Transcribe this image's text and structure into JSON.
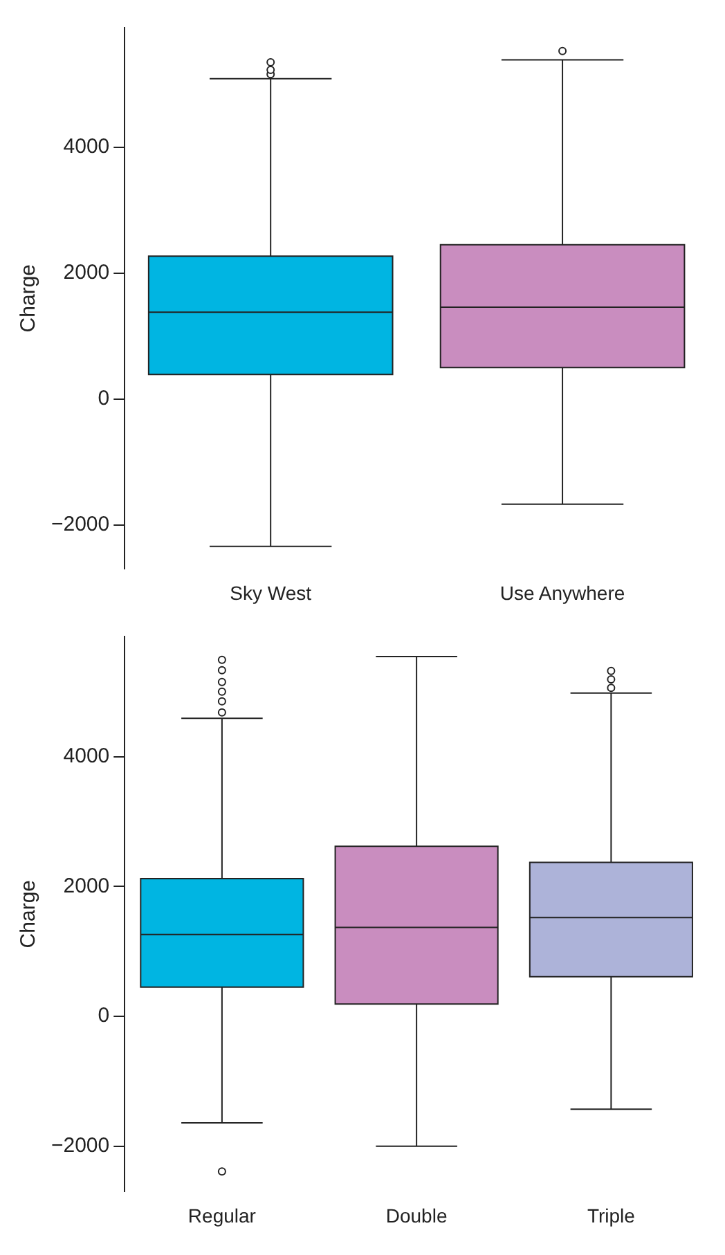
{
  "chart_data": [
    {
      "type": "box",
      "ylabel": "Charge",
      "categories": [
        "Sky West",
        "Use Anywhere"
      ],
      "colors": [
        "#00b5e2",
        "#c98dbf"
      ],
      "ylim": [
        -2700,
        5900
      ],
      "yticks": [
        -2000,
        0,
        2000,
        4000
      ],
      "grid": false,
      "legend": false,
      "boxes": [
        {
          "low": -2340,
          "q1": 390,
          "median": 1380,
          "q3": 2270,
          "high": 5090,
          "outliers": [
            5160,
            5230,
            5350
          ]
        },
        {
          "low": -1670,
          "q1": 500,
          "median": 1460,
          "q3": 2450,
          "high": 5390,
          "outliers": [
            5530
          ]
        }
      ]
    },
    {
      "type": "box",
      "ylabel": "Charge",
      "categories": [
        "Regular",
        "Double",
        "Triple"
      ],
      "colors": [
        "#00b5e2",
        "#c98dbf",
        "#adb3d9"
      ],
      "ylim": [
        -2700,
        5850
      ],
      "yticks": [
        -2000,
        0,
        2000,
        4000
      ],
      "grid": false,
      "legend": false,
      "boxes": [
        {
          "low": -1640,
          "q1": 450,
          "median": 1260,
          "q3": 2120,
          "high": 4590,
          "outliers": [
            4680,
            4850,
            5000,
            5150,
            5330,
            5490,
            -2390
          ]
        },
        {
          "low": -2000,
          "q1": 190,
          "median": 1370,
          "q3": 2620,
          "high": 5540
        },
        {
          "low": -1430,
          "q1": 610,
          "median": 1520,
          "q3": 2370,
          "high": 4980,
          "outliers": [
            5060,
            5190,
            5320
          ]
        }
      ]
    }
  ]
}
